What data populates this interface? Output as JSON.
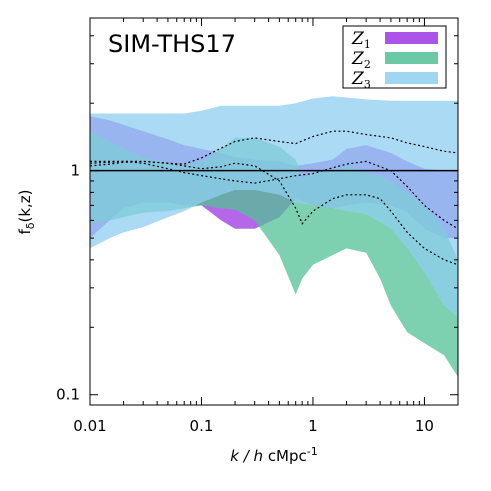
{
  "chart_data": {
    "type": "area",
    "title": "SIM-THS17",
    "xlabel": {
      "italic": "k / h",
      "rest": " cMpc",
      "sup": "-1"
    },
    "ylabel": {
      "main": "f",
      "sub": "δ",
      "rest": "(k,z)"
    },
    "x_scale": "log",
    "y_scale": "log",
    "xlim": [
      0.01,
      20
    ],
    "ylim": [
      0.09,
      4.8
    ],
    "x_ticks": [
      {
        "value": 0.01,
        "label": "0.01"
      },
      {
        "value": 0.1,
        "label": "0.1"
      },
      {
        "value": 1,
        "label": "1"
      },
      {
        "value": 10,
        "label": "10"
      }
    ],
    "y_ticks": [
      {
        "value": 0.1,
        "label": "0.1"
      },
      {
        "value": 1,
        "label": "1"
      }
    ],
    "reference_line": 1,
    "legend_position": "top-right",
    "series": [
      {
        "name": "Z1",
        "label_main": "Z",
        "label_sub": "1",
        "color": "#a03ce4",
        "opacity": 0.78,
        "x": [
          0.01,
          0.015,
          0.02,
          0.03,
          0.05,
          0.07,
          0.1,
          0.15,
          0.2,
          0.3,
          0.5,
          0.7,
          1,
          1.5,
          2,
          3,
          5,
          7,
          10,
          15,
          20
        ],
        "upper": [
          1.75,
          1.68,
          1.6,
          1.5,
          1.38,
          1.3,
          1.25,
          1.2,
          1.15,
          1.12,
          1.1,
          1.05,
          1.08,
          1.12,
          1.25,
          1.3,
          1.2,
          1.1,
          1.02,
          1.0,
          1.0
        ],
        "lower": [
          0.5,
          0.6,
          0.68,
          0.72,
          0.72,
          0.7,
          0.7,
          0.6,
          0.55,
          0.55,
          0.62,
          0.75,
          0.7,
          0.68,
          0.7,
          0.72,
          0.7,
          0.65,
          0.55,
          0.5,
          0.5
        ]
      },
      {
        "name": "Z2",
        "label_main": "Z",
        "label_sub": "2",
        "color": "#52c096",
        "opacity": 0.75,
        "x": [
          0.01,
          0.015,
          0.02,
          0.03,
          0.05,
          0.07,
          0.1,
          0.15,
          0.2,
          0.3,
          0.5,
          0.7,
          0.8,
          1,
          1.5,
          2,
          3,
          4,
          5,
          7,
          10,
          15,
          20
        ],
        "upper": [
          1.5,
          1.35,
          1.25,
          1.15,
          1.08,
          1.05,
          1.1,
          1.25,
          1.4,
          1.4,
          1.28,
          1.12,
          0.92,
          0.98,
          1.0,
          1.05,
          0.98,
          0.95,
          0.9,
          0.8,
          0.7,
          0.55,
          0.4
        ],
        "lower": [
          0.58,
          0.6,
          0.62,
          0.65,
          0.66,
          0.68,
          0.7,
          0.68,
          0.67,
          0.6,
          0.42,
          0.28,
          0.33,
          0.38,
          0.42,
          0.45,
          0.43,
          0.33,
          0.25,
          0.19,
          0.17,
          0.15,
          0.12
        ]
      },
      {
        "name": "Z3",
        "label_main": "Z",
        "label_sub": "3",
        "color": "#8fcff0",
        "opacity": 0.75,
        "x": [
          0.01,
          0.015,
          0.02,
          0.03,
          0.05,
          0.07,
          0.1,
          0.15,
          0.2,
          0.3,
          0.5,
          0.7,
          1,
          1.5,
          2,
          3,
          5,
          7,
          10,
          15,
          20
        ],
        "upper": [
          1.8,
          1.8,
          1.8,
          1.8,
          1.8,
          1.8,
          1.85,
          1.95,
          1.95,
          1.95,
          1.95,
          2.0,
          2.1,
          2.15,
          2.12,
          2.08,
          2.05,
          2.05,
          2.05,
          2.05,
          2.05
        ],
        "lower": [
          0.45,
          0.5,
          0.53,
          0.56,
          0.62,
          0.66,
          0.72,
          0.78,
          0.82,
          0.82,
          0.78,
          0.72,
          0.7,
          0.68,
          0.66,
          0.64,
          0.55,
          0.45,
          0.35,
          0.25,
          0.22
        ]
      }
    ],
    "dotted_curves": [
      {
        "x": [
          0.01,
          0.015,
          0.02,
          0.03,
          0.05,
          0.07,
          0.1,
          0.15,
          0.2,
          0.3,
          0.5,
          0.7,
          1,
          1.5,
          2,
          3,
          5,
          7,
          10,
          15,
          20
        ],
        "y": [
          1.05,
          1.07,
          1.09,
          1.1,
          1.08,
          1.07,
          1.14,
          1.26,
          1.35,
          1.4,
          1.35,
          1.32,
          1.42,
          1.5,
          1.5,
          1.45,
          1.4,
          1.33,
          1.28,
          1.22,
          1.2
        ]
      },
      {
        "x": [
          0.01,
          0.015,
          0.02,
          0.03,
          0.05,
          0.07,
          0.1,
          0.15,
          0.2,
          0.3,
          0.5,
          0.7,
          1,
          1.5,
          2,
          3,
          5,
          7,
          10,
          15,
          20
        ],
        "y": [
          1.08,
          1.09,
          1.1,
          1.08,
          1.02,
          0.98,
          0.95,
          0.92,
          0.9,
          0.88,
          0.92,
          0.95,
          0.97,
          1.03,
          1.07,
          1.1,
          1.0,
          0.85,
          0.7,
          0.6,
          0.55
        ]
      },
      {
        "x": [
          0.01,
          0.015,
          0.02,
          0.03,
          0.05,
          0.07,
          0.1,
          0.15,
          0.2,
          0.3,
          0.5,
          0.7,
          0.8,
          1,
          1.5,
          2,
          3,
          4,
          5,
          7,
          10,
          15,
          20
        ],
        "y": [
          1.1,
          1.1,
          1.1,
          1.1,
          1.08,
          1.05,
          1.02,
          1.04,
          1.08,
          1.05,
          0.9,
          0.68,
          0.58,
          0.66,
          0.75,
          0.78,
          0.78,
          0.75,
          0.66,
          0.53,
          0.45,
          0.4,
          0.38
        ]
      }
    ]
  }
}
